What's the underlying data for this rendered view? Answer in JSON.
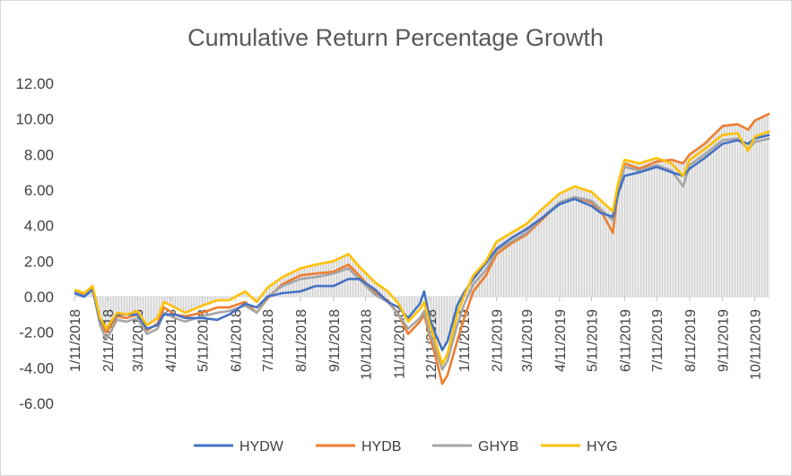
{
  "chart_data": {
    "type": "line",
    "title": "Cumulative Return Percentage Growth",
    "xlabel": "",
    "ylabel": "",
    "ylim": [
      -6,
      12
    ],
    "y_ticks": [
      "12.00",
      "10.00",
      "8.00",
      "6.00",
      "4.00",
      "2.00",
      "0.00",
      "-2.00",
      "-4.00",
      "-6.00"
    ],
    "x_ticks": [
      "1/11/2018",
      "2/11/2018",
      "3/11/2018",
      "4/11/2018",
      "5/11/2018",
      "6/11/2018",
      "7/11/2018",
      "8/11/2018",
      "9/11/2018",
      "10/11/2018",
      "11/11/2018",
      "12/11/2018",
      "1/11/2019",
      "2/11/2019",
      "3/11/2019",
      "4/11/2019",
      "5/11/2019",
      "6/11/2019",
      "7/11/2019",
      "8/11/2019",
      "9/11/2019",
      "10/11/2019"
    ],
    "x_range": [
      "1/11/2018",
      "10/25/2019"
    ],
    "grid": false,
    "legend_position": "bottom",
    "area_fill": "light gray hatched area under the series",
    "series": [
      {
        "name": "HYDW",
        "color": "#4472C4",
        "points": [
          [
            "1/11/2018",
            0.2
          ],
          [
            "1/20/2018",
            0.0
          ],
          [
            "1/28/2018",
            0.4
          ],
          [
            "2/4/2018",
            -1.3
          ],
          [
            "2/10/2018",
            -1.8
          ],
          [
            "2/20/2018",
            -1.0
          ],
          [
            "3/1/2018",
            -1.0
          ],
          [
            "3/11/2018",
            -1.0
          ],
          [
            "3/20/2018",
            -1.8
          ],
          [
            "3/30/2018",
            -1.6
          ],
          [
            "4/5/2018",
            -1.0
          ],
          [
            "4/15/2018",
            -1.0
          ],
          [
            "4/25/2018",
            -1.2
          ],
          [
            "5/11/2018",
            -1.2
          ],
          [
            "5/25/2018",
            -1.3
          ],
          [
            "6/5/2018",
            -1.0
          ],
          [
            "6/20/2018",
            -0.4
          ],
          [
            "7/1/2018",
            -0.6
          ],
          [
            "7/11/2018",
            0.0
          ],
          [
            "7/25/2018",
            0.2
          ],
          [
            "8/11/2018",
            0.3
          ],
          [
            "8/25/2018",
            0.6
          ],
          [
            "9/11/2018",
            0.6
          ],
          [
            "9/25/2018",
            1.0
          ],
          [
            "10/5/2018",
            1.0
          ],
          [
            "10/20/2018",
            0.4
          ],
          [
            "11/1/2018",
            -0.3
          ],
          [
            "11/11/2018",
            -0.6
          ],
          [
            "11/20/2018",
            -1.2
          ],
          [
            "12/1/2018",
            -0.4
          ],
          [
            "12/5/2018",
            0.3
          ],
          [
            "12/10/2018",
            -1.2
          ],
          [
            "12/15/2018",
            -2.0
          ],
          [
            "12/22/2018",
            -3.0
          ],
          [
            "12/27/2018",
            -2.5
          ],
          [
            "1/5/2019",
            -0.5
          ],
          [
            "1/11/2019",
            0.2
          ],
          [
            "1/20/2019",
            1.0
          ],
          [
            "2/1/2019",
            1.9
          ],
          [
            "2/11/2019",
            2.7
          ],
          [
            "2/25/2019",
            3.3
          ],
          [
            "3/11/2019",
            3.8
          ],
          [
            "3/25/2019",
            4.4
          ],
          [
            "4/11/2019",
            5.2
          ],
          [
            "4/25/2019",
            5.5
          ],
          [
            "5/11/2019",
            5.1
          ],
          [
            "5/20/2019",
            4.7
          ],
          [
            "5/31/2019",
            4.5
          ],
          [
            "6/5/2019",
            5.8
          ],
          [
            "6/11/2019",
            6.8
          ],
          [
            "6/25/2019",
            7.0
          ],
          [
            "7/11/2019",
            7.3
          ],
          [
            "7/25/2019",
            7.0
          ],
          [
            "8/5/2019",
            6.8
          ],
          [
            "8/11/2019",
            7.2
          ],
          [
            "8/25/2019",
            7.8
          ],
          [
            "9/11/2019",
            8.6
          ],
          [
            "9/25/2019",
            8.8
          ],
          [
            "10/5/2019",
            8.6
          ],
          [
            "10/11/2019",
            8.9
          ],
          [
            "10/25/2019",
            9.1
          ]
        ]
      },
      {
        "name": "HYDB",
        "color": "#ED7D31",
        "points": [
          [
            "1/11/2018",
            0.3
          ],
          [
            "1/20/2018",
            0.1
          ],
          [
            "1/28/2018",
            0.6
          ],
          [
            "2/4/2018",
            -1.5
          ],
          [
            "2/10/2018",
            -2.0
          ],
          [
            "2/20/2018",
            -1.1
          ],
          [
            "3/1/2018",
            -1.2
          ],
          [
            "3/11/2018",
            -1.0
          ],
          [
            "3/20/2018",
            -1.9
          ],
          [
            "3/30/2018",
            -1.5
          ],
          [
            "4/5/2018",
            -0.6
          ],
          [
            "4/15/2018",
            -1.0
          ],
          [
            "4/25/2018",
            -1.1
          ],
          [
            "5/11/2018",
            -0.9
          ],
          [
            "5/25/2018",
            -0.6
          ],
          [
            "6/5/2018",
            -0.6
          ],
          [
            "6/20/2018",
            -0.3
          ],
          [
            "7/1/2018",
            -0.9
          ],
          [
            "7/11/2018",
            -0.1
          ],
          [
            "7/25/2018",
            0.7
          ],
          [
            "8/11/2018",
            1.2
          ],
          [
            "8/25/2018",
            1.3
          ],
          [
            "9/11/2018",
            1.4
          ],
          [
            "9/25/2018",
            1.8
          ],
          [
            "10/5/2018",
            1.2
          ],
          [
            "10/20/2018",
            0.2
          ],
          [
            "11/1/2018",
            -0.2
          ],
          [
            "11/11/2018",
            -1.0
          ],
          [
            "11/20/2018",
            -2.1
          ],
          [
            "12/1/2018",
            -1.4
          ],
          [
            "12/5/2018",
            -1.0
          ],
          [
            "12/10/2018",
            -2.2
          ],
          [
            "12/15/2018",
            -3.2
          ],
          [
            "12/22/2018",
            -4.9
          ],
          [
            "12/27/2018",
            -4.4
          ],
          [
            "1/5/2019",
            -2.5
          ],
          [
            "1/11/2019",
            -1.3
          ],
          [
            "1/20/2019",
            0.3
          ],
          [
            "2/1/2019",
            1.2
          ],
          [
            "2/11/2019",
            2.4
          ],
          [
            "2/25/2019",
            3.0
          ],
          [
            "3/11/2019",
            3.5
          ],
          [
            "3/25/2019",
            4.3
          ],
          [
            "4/11/2019",
            5.3
          ],
          [
            "4/25/2019",
            5.6
          ],
          [
            "5/11/2019",
            5.3
          ],
          [
            "5/20/2019",
            4.8
          ],
          [
            "5/31/2019",
            3.6
          ],
          [
            "6/5/2019",
            6.0
          ],
          [
            "6/11/2019",
            7.5
          ],
          [
            "6/25/2019",
            7.2
          ],
          [
            "7/11/2019",
            7.6
          ],
          [
            "7/25/2019",
            7.7
          ],
          [
            "8/5/2019",
            7.5
          ],
          [
            "8/11/2019",
            8.0
          ],
          [
            "8/25/2019",
            8.6
          ],
          [
            "9/11/2019",
            9.6
          ],
          [
            "9/25/2019",
            9.7
          ],
          [
            "10/5/2019",
            9.4
          ],
          [
            "10/11/2019",
            9.9
          ],
          [
            "10/25/2019",
            10.3
          ]
        ]
      },
      {
        "name": "GHYB",
        "color": "#A5A5A5",
        "points": [
          [
            "1/11/2018",
            0.3
          ],
          [
            "1/20/2018",
            0.0
          ],
          [
            "1/28/2018",
            0.5
          ],
          [
            "2/4/2018",
            -1.6
          ],
          [
            "2/10/2018",
            -2.4
          ],
          [
            "2/20/2018",
            -1.3
          ],
          [
            "3/1/2018",
            -1.4
          ],
          [
            "3/11/2018",
            -1.2
          ],
          [
            "3/20/2018",
            -2.1
          ],
          [
            "3/30/2018",
            -1.8
          ],
          [
            "4/5/2018",
            -0.9
          ],
          [
            "4/15/2018",
            -1.2
          ],
          [
            "4/25/2018",
            -1.4
          ],
          [
            "5/11/2018",
            -1.1
          ],
          [
            "5/25/2018",
            -0.9
          ],
          [
            "6/5/2018",
            -0.8
          ],
          [
            "6/20/2018",
            -0.5
          ],
          [
            "7/1/2018",
            -0.9
          ],
          [
            "7/11/2018",
            0.0
          ],
          [
            "7/25/2018",
            0.6
          ],
          [
            "8/11/2018",
            1.0
          ],
          [
            "8/25/2018",
            1.1
          ],
          [
            "9/11/2018",
            1.3
          ],
          [
            "9/25/2018",
            1.6
          ],
          [
            "10/5/2018",
            1.0
          ],
          [
            "10/20/2018",
            0.1
          ],
          [
            "11/1/2018",
            -0.3
          ],
          [
            "11/11/2018",
            -1.0
          ],
          [
            "11/20/2018",
            -1.8
          ],
          [
            "12/1/2018",
            -1.2
          ],
          [
            "12/5/2018",
            -0.8
          ],
          [
            "12/10/2018",
            -2.0
          ],
          [
            "12/15/2018",
            -2.8
          ],
          [
            "12/22/2018",
            -4.1
          ],
          [
            "12/27/2018",
            -3.6
          ],
          [
            "1/5/2019",
            -1.6
          ],
          [
            "1/11/2019",
            -0.5
          ],
          [
            "1/20/2019",
            0.7
          ],
          [
            "2/1/2019",
            1.5
          ],
          [
            "2/11/2019",
            2.6
          ],
          [
            "2/25/2019",
            3.1
          ],
          [
            "3/11/2019",
            3.6
          ],
          [
            "3/25/2019",
            4.4
          ],
          [
            "4/11/2019",
            5.3
          ],
          [
            "4/25/2019",
            5.6
          ],
          [
            "5/11/2019",
            5.4
          ],
          [
            "5/20/2019",
            4.9
          ],
          [
            "5/31/2019",
            4.3
          ],
          [
            "6/5/2019",
            6.0
          ],
          [
            "6/11/2019",
            7.3
          ],
          [
            "6/25/2019",
            7.1
          ],
          [
            "7/11/2019",
            7.4
          ],
          [
            "7/25/2019",
            7.1
          ],
          [
            "8/5/2019",
            6.2
          ],
          [
            "8/11/2019",
            7.4
          ],
          [
            "8/25/2019",
            8.0
          ],
          [
            "9/11/2019",
            8.8
          ],
          [
            "9/25/2019",
            8.9
          ],
          [
            "10/5/2019",
            8.3
          ],
          [
            "10/11/2019",
            8.7
          ],
          [
            "10/25/2019",
            8.9
          ]
        ]
      },
      {
        "name": "HYG",
        "color": "#FFC000",
        "points": [
          [
            "1/11/2018",
            0.4
          ],
          [
            "1/20/2018",
            0.2
          ],
          [
            "1/28/2018",
            0.6
          ],
          [
            "2/4/2018",
            -1.2
          ],
          [
            "2/10/2018",
            -1.8
          ],
          [
            "2/20/2018",
            -0.9
          ],
          [
            "3/1/2018",
            -1.0
          ],
          [
            "3/11/2018",
            -0.8
          ],
          [
            "3/20/2018",
            -1.6
          ],
          [
            "3/30/2018",
            -1.2
          ],
          [
            "4/5/2018",
            -0.3
          ],
          [
            "4/15/2018",
            -0.6
          ],
          [
            "4/25/2018",
            -0.9
          ],
          [
            "5/11/2018",
            -0.5
          ],
          [
            "5/25/2018",
            -0.2
          ],
          [
            "6/5/2018",
            -0.2
          ],
          [
            "6/20/2018",
            0.3
          ],
          [
            "7/1/2018",
            -0.3
          ],
          [
            "7/11/2018",
            0.5
          ],
          [
            "7/25/2018",
            1.1
          ],
          [
            "8/11/2018",
            1.6
          ],
          [
            "8/25/2018",
            1.8
          ],
          [
            "9/11/2018",
            2.0
          ],
          [
            "9/25/2018",
            2.4
          ],
          [
            "10/5/2018",
            1.7
          ],
          [
            "10/20/2018",
            0.8
          ],
          [
            "11/1/2018",
            0.3
          ],
          [
            "11/11/2018",
            -0.4
          ],
          [
            "11/20/2018",
            -1.4
          ],
          [
            "12/1/2018",
            -0.7
          ],
          [
            "12/5/2018",
            -0.3
          ],
          [
            "12/10/2018",
            -1.5
          ],
          [
            "12/15/2018",
            -2.4
          ],
          [
            "12/22/2018",
            -3.8
          ],
          [
            "12/27/2018",
            -3.2
          ],
          [
            "1/5/2019",
            -1.0
          ],
          [
            "1/11/2019",
            0.0
          ],
          [
            "1/20/2019",
            1.2
          ],
          [
            "2/1/2019",
            2.0
          ],
          [
            "2/11/2019",
            3.1
          ],
          [
            "2/25/2019",
            3.6
          ],
          [
            "3/11/2019",
            4.1
          ],
          [
            "3/25/2019",
            4.9
          ],
          [
            "4/11/2019",
            5.8
          ],
          [
            "4/25/2019",
            6.2
          ],
          [
            "5/11/2019",
            5.9
          ],
          [
            "5/20/2019",
            5.4
          ],
          [
            "5/31/2019",
            4.8
          ],
          [
            "6/5/2019",
            6.4
          ],
          [
            "6/11/2019",
            7.7
          ],
          [
            "6/25/2019",
            7.5
          ],
          [
            "7/11/2019",
            7.8
          ],
          [
            "7/25/2019",
            7.5
          ],
          [
            "8/5/2019",
            6.8
          ],
          [
            "8/11/2019",
            7.7
          ],
          [
            "8/25/2019",
            8.3
          ],
          [
            "9/11/2019",
            9.1
          ],
          [
            "9/25/2019",
            9.2
          ],
          [
            "10/5/2019",
            8.2
          ],
          [
            "10/11/2019",
            9.0
          ],
          [
            "10/25/2019",
            9.3
          ]
        ]
      }
    ]
  }
}
